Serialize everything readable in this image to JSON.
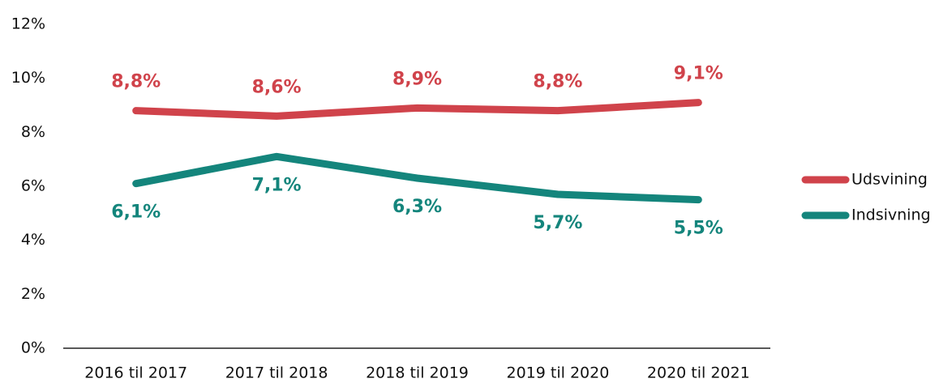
{
  "chart_data": {
    "type": "line",
    "categories": [
      "2016 til 2017",
      "2017 til 2018",
      "2018 til 2019",
      "2019 til 2020",
      "2020 til 2021"
    ],
    "series": [
      {
        "name": "Udsvining",
        "color": "#d0434b",
        "values": [
          8.8,
          8.6,
          8.9,
          8.8,
          9.1
        ],
        "value_labels": [
          "8,8%",
          "8,6%",
          "8,9%",
          "8,8%",
          "9,1%"
        ]
      },
      {
        "name": "Indsivning",
        "color": "#14857c",
        "values": [
          6.1,
          7.1,
          6.3,
          5.7,
          5.5
        ],
        "value_labels": [
          "6,1%",
          "7,1%",
          "6,3%",
          "5,7%",
          "5,5%"
        ]
      }
    ],
    "ylim": [
      0,
      12
    ],
    "yticks": [
      {
        "value": 0,
        "label": "0%"
      },
      {
        "value": 2,
        "label": "2%"
      },
      {
        "value": 4,
        "label": "4%"
      },
      {
        "value": 6,
        "label": "6%"
      },
      {
        "value": 8,
        "label": "8%"
      },
      {
        "value": 10,
        "label": "10%"
      },
      {
        "value": 12,
        "label": "12%"
      }
    ],
    "grid": false,
    "legend": "right"
  }
}
